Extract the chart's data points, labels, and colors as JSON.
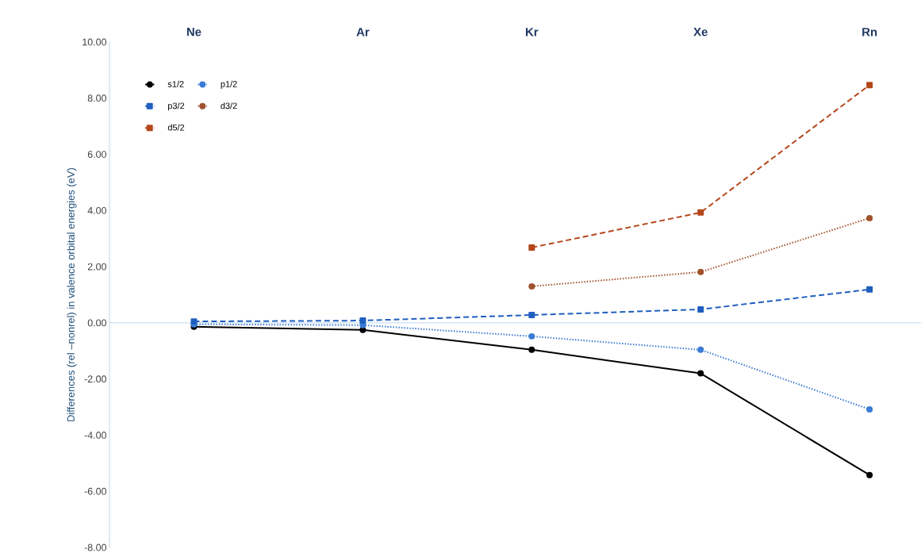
{
  "chart_data": {
    "type": "line",
    "ylabel": "Differences  (rel –nonrel) in valence orbital energies (eV)",
    "categories": [
      "Ne",
      "Ar",
      "Kr",
      "Xe",
      "Rn"
    ],
    "series": [
      {
        "name": "s1/2",
        "color": "#000000",
        "line_style": "solid",
        "marker": "circle",
        "values": [
          -0.14,
          -0.25,
          -0.96,
          -1.8,
          -5.42
        ]
      },
      {
        "name": "p1/2",
        "color": "#3a7bd5",
        "line_style": "dotted",
        "marker": "circle",
        "values": [
          -0.05,
          -0.08,
          -0.48,
          -0.96,
          -3.08
        ]
      },
      {
        "name": "p3/2",
        "color": "#1f5fbf",
        "line_style": "dashed",
        "marker": "square",
        "values": [
          0.05,
          0.08,
          0.28,
          0.48,
          1.19
        ]
      },
      {
        "name": "d3/2",
        "color": "#a0522d",
        "line_style": "dotted",
        "marker": "circle",
        "values": [
          null,
          null,
          1.3,
          1.81,
          3.73
        ]
      },
      {
        "name": "d5/2",
        "color": "#b5471c",
        "line_style": "dashed",
        "marker": "square",
        "values": [
          null,
          null,
          2.68,
          3.93,
          8.47
        ]
      }
    ],
    "ylim": [
      -8,
      10
    ],
    "yticks": [
      {
        "value": -8,
        "label": "-8.00"
      },
      {
        "value": -6,
        "label": "-6.00"
      },
      {
        "value": -4,
        "label": "-4.00"
      },
      {
        "value": -2,
        "label": "-2.00"
      },
      {
        "value": 0,
        "label": "0.00"
      },
      {
        "value": 2,
        "label": "2.00"
      },
      {
        "value": 4,
        "label": "4.00"
      },
      {
        "value": 6,
        "label": "6.00"
      },
      {
        "value": 8,
        "label": "8.00"
      },
      {
        "value": 10,
        "label": "10.00"
      }
    ],
    "ref_lines": [
      {
        "axis": "y",
        "value": 0,
        "color": "#bdd7ee"
      }
    ],
    "legend": "top left",
    "grid": false
  }
}
